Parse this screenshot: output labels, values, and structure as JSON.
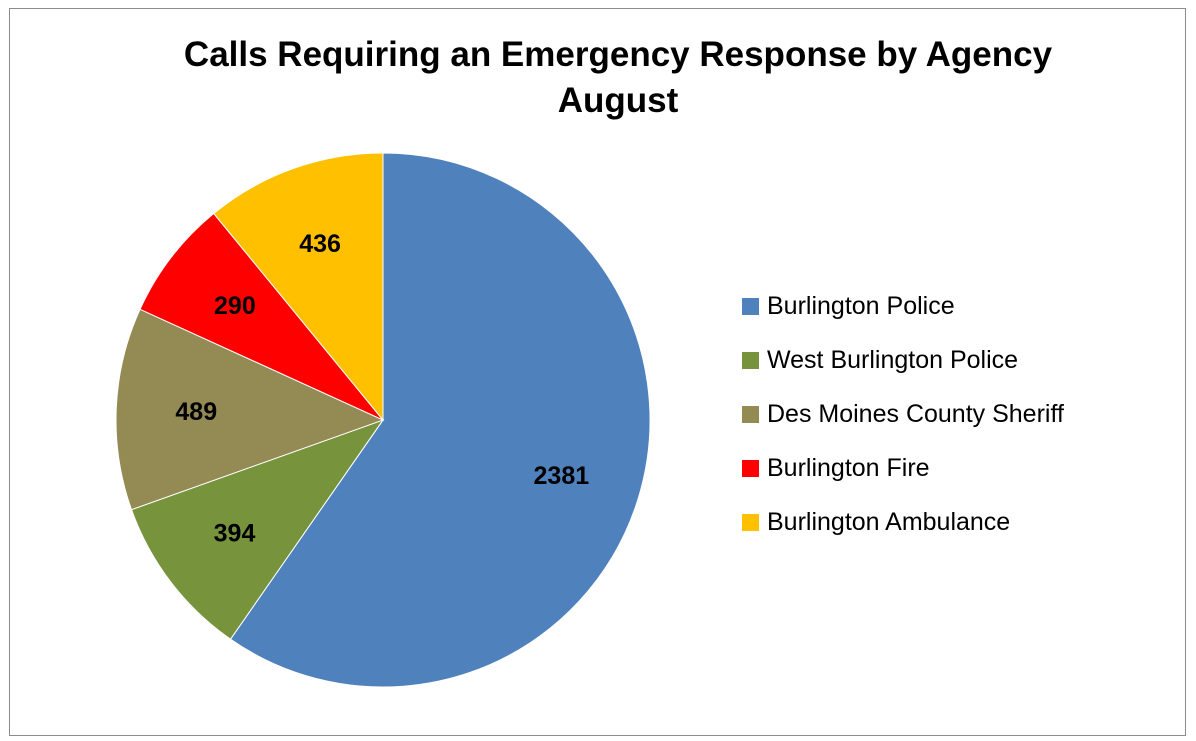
{
  "chart_data": {
    "type": "pie",
    "title_lines": [
      "Calls Requiring an Emergency Response by Agency",
      "August"
    ],
    "categories": [
      "Burlington Police",
      "West Burlington Police",
      "Des Moines County Sheriff",
      "Burlington Fire",
      "Burlington Ambulance"
    ],
    "values": [
      2381,
      394,
      489,
      290,
      436
    ],
    "colors": [
      "#4f81bd",
      "#77933c",
      "#948a54",
      "#ff0000",
      "#ffc000"
    ],
    "data_labels": [
      "2381",
      "394",
      "489",
      "290",
      "436"
    ],
    "start_angle_deg": 0,
    "direction": "clockwise",
    "legend_position": "right"
  }
}
